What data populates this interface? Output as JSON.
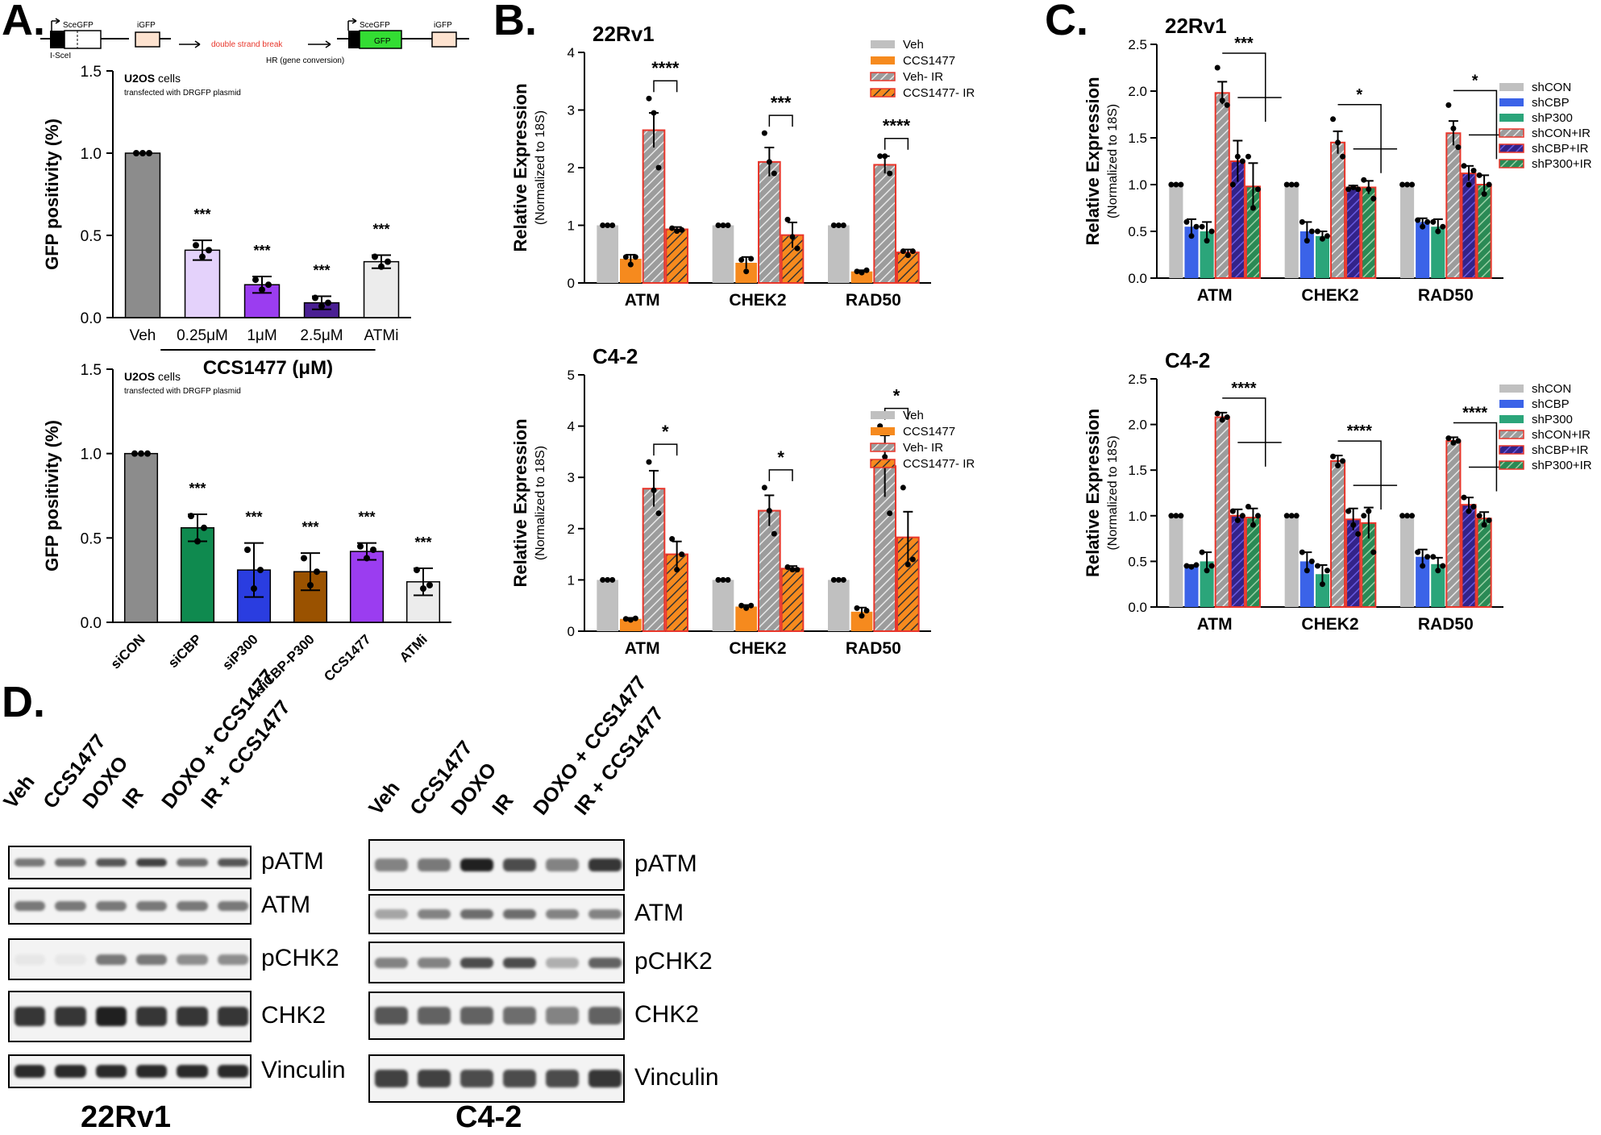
{
  "panels": {
    "A": "A.",
    "B": "B.",
    "C": "C.",
    "D": "D."
  },
  "schematic": {
    "sce_left": "SceGFP",
    "isce": "I-SceI",
    "igfp_left": "iGFP",
    "break_text": "double strand break",
    "sce_right": "SceGFP",
    "gfp": "GFP",
    "igfp_right": "iGFP",
    "hr_text": "HR (gene conversion)"
  },
  "colors": {
    "veh_gray": "#8c8c8c",
    "light_gray": "#c0c0c0",
    "orange": "#f68a1e",
    "red_border": "#e8362b",
    "blue": "#3b63e8",
    "green": "#2ba57a",
    "dark_purple": "#33238a",
    "gfp_green": "#33dd33",
    "igfp_fill": "#fde2cf"
  },
  "chart_data": [
    {
      "id": "A1",
      "type": "bar",
      "annotation_main": "U2OS",
      "annotation_main_suffix": " cells",
      "annotation_sub": "transfected with DRGFP plasmid",
      "ylabel": "GFP positivity (%)",
      "ylim": [
        0,
        1.5
      ],
      "yticks": [
        "0.0",
        "0.5",
        "1.0",
        "1.5"
      ],
      "categories": [
        "Veh",
        "0.25μM",
        "1μM",
        "2.5μM",
        "ATMi"
      ],
      "xgroup_label": "CCS1477 (μM)",
      "values": [
        1.0,
        0.41,
        0.2,
        0.09,
        0.34
      ],
      "errors": [
        0.0,
        0.06,
        0.05,
        0.04,
        0.04
      ],
      "fills": [
        "#8c8c8c",
        "#e4d2fb",
        "#9b3df0",
        "#4a1f93",
        "#ececec"
      ],
      "sig": [
        "",
        "***",
        "***",
        "***",
        "***"
      ],
      "points": [
        [
          1,
          1,
          1
        ],
        [
          0.44,
          0.37,
          0.41
        ],
        [
          0.23,
          0.17,
          0.2
        ],
        [
          0.12,
          0.07,
          0.09
        ],
        [
          0.37,
          0.31,
          0.34
        ]
      ]
    },
    {
      "id": "A2",
      "type": "bar",
      "annotation_main": "U2OS",
      "annotation_main_suffix": " cells",
      "annotation_sub": "transfected with DRGFP plasmid",
      "ylabel": "GFP positivity (%)",
      "ylim": [
        0,
        1.5
      ],
      "yticks": [
        "0.0",
        "0.5",
        "1.0",
        "1.5"
      ],
      "categories": [
        "siCON",
        "siCBP",
        "siP300",
        "siCBP-P300",
        "CCS1477",
        "ATMi"
      ],
      "values": [
        1.0,
        0.56,
        0.31,
        0.3,
        0.42,
        0.24
      ],
      "errors": [
        0.0,
        0.08,
        0.16,
        0.11,
        0.05,
        0.08
      ],
      "fills": [
        "#8c8c8c",
        "#0f8a4f",
        "#2a3de0",
        "#9a5200",
        "#9b3df0",
        "#ececec"
      ],
      "sig": [
        "",
        "***",
        "***",
        "***",
        "***",
        "***"
      ],
      "points": [
        [
          1,
          1,
          1
        ],
        [
          0.63,
          0.48,
          0.56
        ],
        [
          0.43,
          0.2,
          0.31
        ],
        [
          0.38,
          0.22,
          0.3
        ],
        [
          0.45,
          0.38,
          0.43
        ],
        [
          0.31,
          0.2,
          0.22
        ]
      ]
    },
    {
      "id": "B1",
      "type": "bar",
      "title": "22Rv1",
      "ylabel": "Relative Expression",
      "ylabel2": "(Normalized to 18S)",
      "ylim": [
        0,
        4
      ],
      "yticks": [
        "0",
        "1",
        "2",
        "3",
        "4"
      ],
      "categories": [
        "ATM",
        "CHEK2",
        "RAD50"
      ],
      "legend": [
        "Veh",
        "CCS1477",
        "Veh- IR",
        "CCS1477- IR"
      ],
      "series": [
        {
          "name": "Veh",
          "values": [
            1.0,
            1.0,
            1.0
          ],
          "errors": [
            0,
            0,
            0
          ],
          "points": [
            [
              1,
              1,
              1
            ],
            [
              1,
              1,
              1
            ],
            [
              1,
              1,
              1
            ]
          ]
        },
        {
          "name": "CCS1477",
          "values": [
            0.42,
            0.35,
            0.2
          ],
          "errors": [
            0.07,
            0.1,
            0.02
          ],
          "points": [
            [
              0.45,
              0.32,
              0.45
            ],
            [
              0.4,
              0.2,
              0.42
            ],
            [
              0.2,
              0.18,
              0.22
            ]
          ]
        },
        {
          "name": "Veh- IR",
          "values": [
            2.65,
            2.1,
            2.05
          ],
          "errors": [
            0.3,
            0.25,
            0.15
          ],
          "points": [
            [
              3.2,
              2.95,
              2.0
            ],
            [
              2.6,
              2.1,
              1.9
            ],
            [
              2.2,
              2.2,
              1.9
            ]
          ]
        },
        {
          "name": "CCS1477- IR",
          "values": [
            0.93,
            0.83,
            0.53
          ],
          "errors": [
            0.04,
            0.22,
            0.05
          ],
          "points": [
            [
              0.95,
              0.9,
              0.92
            ],
            [
              1.1,
              0.8,
              0.6
            ],
            [
              0.55,
              0.48,
              0.55
            ]
          ]
        }
      ],
      "sig": [
        "****",
        "***",
        "****"
      ]
    },
    {
      "id": "B2",
      "type": "bar",
      "title": "C4-2",
      "ylabel": "Relative Expression",
      "ylabel2": "(Normalized to 18S)",
      "ylim": [
        0,
        5
      ],
      "yticks": [
        "0",
        "1",
        "2",
        "3",
        "4",
        "5"
      ],
      "categories": [
        "ATM",
        "CHEK2",
        "RAD50"
      ],
      "legend": [
        "Veh",
        "CCS1477",
        "Veh- IR",
        "CCS1477- IR"
      ],
      "series": [
        {
          "name": "Veh",
          "values": [
            1.0,
            1.0,
            1.0
          ],
          "errors": [
            0,
            0,
            0
          ],
          "points": [
            [
              1,
              1,
              1
            ],
            [
              1,
              1,
              1
            ],
            [
              1,
              1,
              1
            ]
          ]
        },
        {
          "name": "CCS1477",
          "values": [
            0.24,
            0.48,
            0.38
          ],
          "errors": [
            0.02,
            0.03,
            0.08
          ],
          "points": [
            [
              0.24,
              0.22,
              0.25
            ],
            [
              0.5,
              0.45,
              0.5
            ],
            [
              0.45,
              0.3,
              0.4
            ]
          ]
        },
        {
          "name": "Veh- IR",
          "values": [
            2.78,
            2.35,
            3.22
          ],
          "errors": [
            0.35,
            0.3,
            0.6
          ],
          "points": [
            [
              3.3,
              2.75,
              2.3
            ],
            [
              2.8,
              2.35,
              1.9
            ],
            [
              4.0,
              3.4,
              2.3
            ]
          ]
        },
        {
          "name": "CCS1477- IR",
          "values": [
            1.5,
            1.22,
            1.83
          ],
          "errors": [
            0.25,
            0.05,
            0.5
          ],
          "points": [
            [
              1.8,
              1.2,
              1.5
            ],
            [
              1.25,
              1.2,
              1.2
            ],
            [
              2.8,
              1.3,
              1.4
            ]
          ]
        }
      ],
      "sig": [
        "*",
        "*",
        "*"
      ]
    },
    {
      "id": "C1",
      "type": "bar",
      "title": "22Rv1",
      "ylabel": "Relative Expression",
      "ylabel2": "(Normalized to 18S)",
      "ylim": [
        0,
        2.5
      ],
      "yticks": [
        "0.0",
        "0.5",
        "1.0",
        "1.5",
        "2.0",
        "2.5"
      ],
      "categories": [
        "ATM",
        "CHEK2",
        "RAD50"
      ],
      "legend": [
        "shCON",
        "shCBP",
        "shP300",
        "shCON+IR",
        "shCBP+IR",
        "shP300+IR"
      ],
      "series": [
        {
          "name": "shCON",
          "values": [
            1.0,
            1.0,
            1.0
          ],
          "errors": [
            0,
            0,
            0
          ],
          "points": [
            [
              1,
              1,
              1
            ],
            [
              1,
              1,
              1
            ],
            [
              1,
              1,
              1
            ]
          ]
        },
        {
          "name": "shCBP",
          "values": [
            0.55,
            0.5,
            0.6
          ],
          "errors": [
            0.08,
            0.1,
            0.04
          ],
          "points": [
            [
              0.6,
              0.45,
              0.55
            ],
            [
              0.6,
              0.4,
              0.5
            ],
            [
              0.62,
              0.55,
              0.6
            ]
          ]
        },
        {
          "name": "shP300",
          "values": [
            0.5,
            0.45,
            0.55
          ],
          "errors": [
            0.1,
            0.05,
            0.08
          ],
          "points": [
            [
              0.55,
              0.4,
              0.5
            ],
            [
              0.5,
              0.42,
              0.45
            ],
            [
              0.6,
              0.5,
              0.55
            ]
          ]
        },
        {
          "name": "shCON+IR",
          "values": [
            1.98,
            1.45,
            1.55
          ],
          "errors": [
            0.12,
            0.12,
            0.13
          ],
          "points": [
            [
              2.25,
              1.9,
              1.85
            ],
            [
              1.7,
              1.45,
              1.3
            ],
            [
              1.85,
              1.6,
              1.4
            ]
          ]
        },
        {
          "name": "shCBP+IR",
          "values": [
            1.25,
            0.97,
            1.12
          ],
          "errors": [
            0.22,
            0.02,
            0.08
          ],
          "points": [
            [
              1.0,
              1.3,
              1.25
            ],
            [
              0.95,
              0.97,
              0.95
            ],
            [
              1.2,
              1.0,
              1.15
            ]
          ]
        },
        {
          "name": "shP300+IR",
          "values": [
            0.98,
            0.97,
            1.0
          ],
          "errors": [
            0.25,
            0.07,
            0.1
          ],
          "points": [
            [
              1.3,
              0.75,
              0.95
            ],
            [
              1.05,
              0.95,
              0.85
            ],
            [
              1.1,
              0.9,
              1.0
            ]
          ]
        }
      ],
      "sig": [
        "***",
        "*",
        "*"
      ]
    },
    {
      "id": "C2",
      "type": "bar",
      "title": "C4-2",
      "ylabel": "Relative Expression",
      "ylabel2": "(Normalized to 18S)",
      "ylim": [
        0,
        2.5
      ],
      "yticks": [
        "0.0",
        "0.5",
        "1.0",
        "1.5",
        "2.0",
        "2.5"
      ],
      "categories": [
        "ATM",
        "CHEK2",
        "RAD50"
      ],
      "legend": [
        "shCON",
        "shCBP",
        "shP300",
        "shCON+IR",
        "shCBP+IR",
        "shP300+IR"
      ],
      "series": [
        {
          "name": "shCON",
          "values": [
            1.0,
            1.0,
            1.0
          ],
          "errors": [
            0,
            0,
            0
          ],
          "points": [
            [
              1,
              1,
              1
            ],
            [
              1,
              1,
              1
            ],
            [
              1,
              1,
              1
            ]
          ]
        },
        {
          "name": "shCBP",
          "values": [
            0.45,
            0.5,
            0.55
          ],
          "errors": [
            0.01,
            0.1,
            0.08
          ],
          "points": [
            [
              0.45,
              0.44,
              0.46
            ],
            [
              0.6,
              0.4,
              0.5
            ],
            [
              0.6,
              0.45,
              0.55
            ]
          ]
        },
        {
          "name": "shP300",
          "values": [
            0.5,
            0.36,
            0.47
          ],
          "errors": [
            0.1,
            0.1,
            0.07
          ],
          "points": [
            [
              0.6,
              0.4,
              0.45
            ],
            [
              0.45,
              0.25,
              0.4
            ],
            [
              0.55,
              0.4,
              0.45
            ]
          ]
        },
        {
          "name": "shCON+IR",
          "values": [
            2.08,
            1.6,
            1.82
          ],
          "errors": [
            0.05,
            0.06,
            0.04
          ],
          "points": [
            [
              2.12,
              2.05,
              2.08
            ],
            [
              1.65,
              1.55,
              1.6
            ],
            [
              1.85,
              1.8,
              1.82
            ]
          ]
        },
        {
          "name": "shCBP+IR",
          "values": [
            1.0,
            0.96,
            1.12
          ],
          "errors": [
            0.07,
            0.12,
            0.08
          ],
          "points": [
            [
              1.05,
              0.95,
              1.0
            ],
            [
              1.05,
              0.9,
              0.8
            ],
            [
              1.2,
              1.05,
              1.1
            ]
          ]
        },
        {
          "name": "shP300+IR",
          "values": [
            0.98,
            0.92,
            0.97
          ],
          "errors": [
            0.1,
            0.17,
            0.07
          ],
          "points": [
            [
              1.1,
              0.9,
              1.0
            ],
            [
              1.0,
              1.05,
              0.6
            ],
            [
              1.0,
              0.9,
              0.95
            ]
          ]
        }
      ],
      "sig": [
        "****",
        "****",
        "****"
      ]
    }
  ],
  "blots": {
    "left": {
      "cell_line": "22Rv1",
      "lanes": [
        "Veh",
        "CCS1477",
        "DOXO",
        "IR",
        "DOXO + CCS1477",
        "IR + CCS1477"
      ],
      "proteins": [
        "pATM",
        "ATM",
        "pCHK2",
        "CHK2",
        "Vinculin"
      ]
    },
    "right": {
      "cell_line": "C4-2",
      "lanes": [
        "Veh",
        "CCS1477",
        "DOXO",
        "IR",
        "DOXO + CCS1477",
        "IR + CCS1477"
      ],
      "proteins": [
        "pATM",
        "ATM",
        "pCHK2",
        "CHK2",
        "Vinculin"
      ]
    }
  }
}
